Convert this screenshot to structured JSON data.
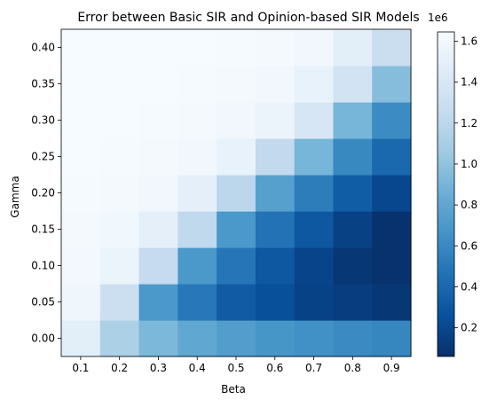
{
  "chart_data": {
    "type": "heatmap",
    "title": "Error between Basic SIR and Opinion-based SIR Models",
    "xlabel": "Beta",
    "ylabel": "Gamma",
    "x": [
      0.1,
      0.2,
      0.3,
      0.4,
      0.5,
      0.6,
      0.7,
      0.8,
      0.9
    ],
    "x_tick_labels": [
      "0.1",
      "0.2",
      "0.3",
      "0.4",
      "0.5",
      "0.6",
      "0.7",
      "0.8",
      "0.9"
    ],
    "y": [
      0.0,
      0.05,
      0.1,
      0.15,
      0.2,
      0.25,
      0.3,
      0.35,
      0.4
    ],
    "y_tick_labels": [
      "0.00",
      "0.05",
      "0.10",
      "0.15",
      "0.20",
      "0.25",
      "0.30",
      "0.35",
      "0.40"
    ],
    "z": [
      [
        1.48,
        1.12,
        0.92,
        0.8,
        0.73,
        0.68,
        0.65,
        0.61,
        0.58
      ],
      [
        1.58,
        1.3,
        0.7,
        0.5,
        0.32,
        0.25,
        0.17,
        0.14,
        0.1
      ],
      [
        1.61,
        1.55,
        1.25,
        0.7,
        0.48,
        0.3,
        0.18,
        0.1,
        0.07
      ],
      [
        1.62,
        1.59,
        1.5,
        1.22,
        0.7,
        0.46,
        0.3,
        0.16,
        0.07
      ],
      [
        1.63,
        1.62,
        1.6,
        1.5,
        1.2,
        0.75,
        0.53,
        0.33,
        0.2
      ],
      [
        1.64,
        1.63,
        1.62,
        1.6,
        1.53,
        1.23,
        0.9,
        0.6,
        0.4
      ],
      [
        1.64,
        1.64,
        1.63,
        1.62,
        1.6,
        1.55,
        1.38,
        0.9,
        0.62
      ],
      [
        1.64,
        1.64,
        1.64,
        1.63,
        1.62,
        1.6,
        1.53,
        1.35,
        0.96
      ],
      [
        1.64,
        1.64,
        1.64,
        1.64,
        1.63,
        1.62,
        1.6,
        1.48,
        1.28
      ]
    ],
    "z_scale_label": "1e6",
    "colorbar": {
      "min": 0.06,
      "max": 1.645,
      "ticks": [
        0.2,
        0.4,
        0.6,
        0.8,
        1.0,
        1.2,
        1.4,
        1.6
      ],
      "tick_labels": [
        "0.2",
        "0.4",
        "0.6",
        "0.8",
        "1.0",
        "1.2",
        "1.4",
        "1.6"
      ]
    },
    "colormap": "Blues_r",
    "colormap_stops": [
      "#08306b",
      "#08519c",
      "#2171b5",
      "#4292c6",
      "#6baed6",
      "#9ecae1",
      "#c6dbef",
      "#deebf7",
      "#f7fbff"
    ],
    "grid": false
  }
}
